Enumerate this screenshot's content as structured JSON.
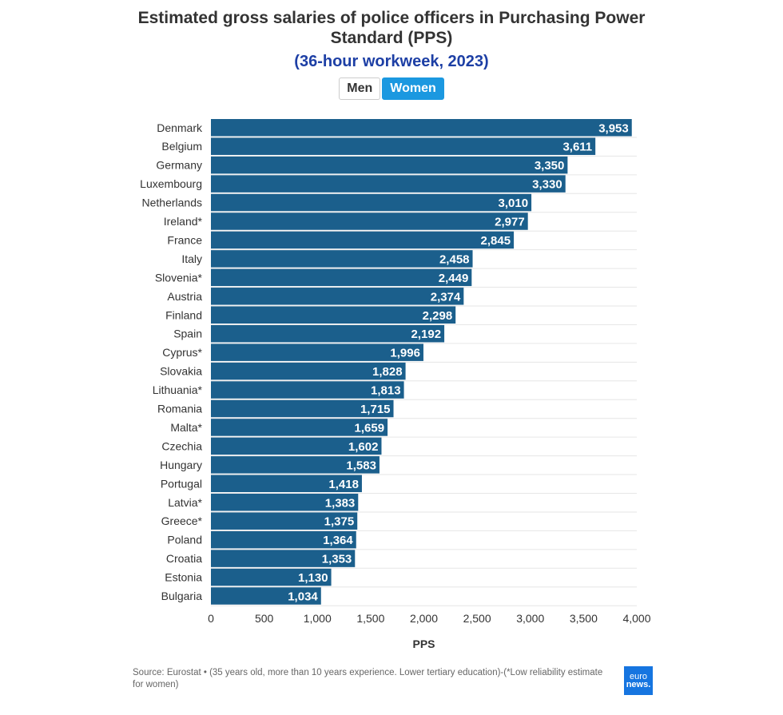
{
  "title_line1": "Estimated gross salaries of police officers in Purchasing Power",
  "title_line2": "Standard (PPS)",
  "subtitle": "(36-hour workweek, 2023)",
  "toggles": [
    {
      "label": "Men",
      "active": false
    },
    {
      "label": "Women",
      "active": true
    }
  ],
  "source": "Source: Eurostat • (35 years old, more than 10 years experience. Lower tertiary education)-(*Low reliability estimate for women)",
  "logo": {
    "line1": "euro",
    "line2": "news."
  },
  "colors": {
    "bar": "#1b5f8c",
    "label": "#ffffff",
    "toggle_active": "#1b98e0",
    "subtitle": "#1d3fa5"
  },
  "chart_data": {
    "type": "bar",
    "orientation": "horizontal",
    "categories": [
      "Denmark",
      "Belgium",
      "Germany",
      "Luxembourg",
      "Netherlands",
      "Ireland*",
      "France",
      "Italy",
      "Slovenia*",
      "Austria",
      "Finland",
      "Spain",
      "Cyprus*",
      "Slovakia",
      "Lithuania*",
      "Romania",
      "Malta*",
      "Czechia",
      "Hungary",
      "Portugal",
      "Latvia*",
      "Greece*",
      "Poland",
      "Croatia",
      "Estonia",
      "Bulgaria"
    ],
    "values": [
      3953,
      3611,
      3350,
      3330,
      3010,
      2977,
      2845,
      2458,
      2449,
      2374,
      2298,
      2192,
      1996,
      1828,
      1813,
      1715,
      1659,
      1602,
      1583,
      1418,
      1383,
      1375,
      1364,
      1353,
      1130,
      1034
    ],
    "value_labels": [
      "3,953",
      "3,611",
      "3,350",
      "3,330",
      "3,010",
      "2,977",
      "2,845",
      "2,458",
      "2,449",
      "2,374",
      "2,298",
      "2,192",
      "1,996",
      "1,828",
      "1,813",
      "1,715",
      "1,659",
      "1,602",
      "1,583",
      "1,418",
      "1,383",
      "1,375",
      "1,364",
      "1,353",
      "1,130",
      "1,034"
    ],
    "xlabel": "PPS",
    "xlim": [
      0,
      4000
    ],
    "xticks": [
      0,
      500,
      1000,
      1500,
      2000,
      2500,
      3000,
      3500,
      4000
    ],
    "xtick_labels": [
      "0",
      "500",
      "1,000",
      "1,500",
      "2,000",
      "2,500",
      "3,000",
      "3,500",
      "4,000"
    ],
    "grid": true
  }
}
